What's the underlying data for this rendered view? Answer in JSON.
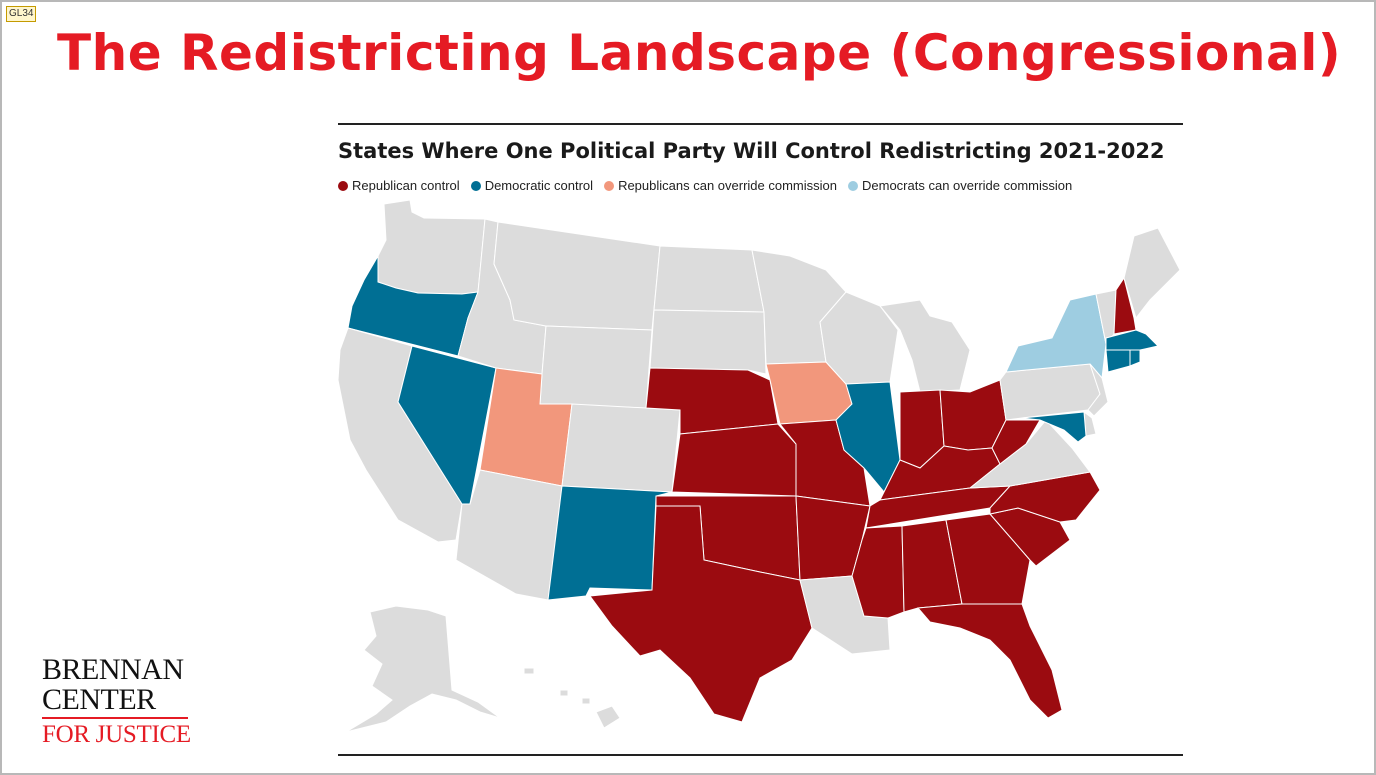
{
  "corner_tag": "GL34",
  "slide_title": "The Redistricting Landscape (Congressional)",
  "map_title": "States Where One Political Party Will Control Redistricting 2021-2022",
  "legend": [
    {
      "label": "Republican control",
      "color": "#9b0b10"
    },
    {
      "label": "Democratic control",
      "color": "#006f94"
    },
    {
      "label": "Republicans can override commission",
      "color": "#f2977c"
    },
    {
      "label": "Democrats can override commission",
      "color": "#9ecde1"
    }
  ],
  "neutral_color": "#dcdcdc",
  "logo": {
    "line1": "BRENNAN",
    "line2": "CENTER",
    "line3": "FOR JUSTICE"
  },
  "states": [
    {
      "name": "Washington",
      "status": "neutral"
    },
    {
      "name": "Oregon",
      "status": "democratic"
    },
    {
      "name": "California",
      "status": "neutral"
    },
    {
      "name": "Nevada",
      "status": "democratic"
    },
    {
      "name": "Idaho",
      "status": "neutral"
    },
    {
      "name": "Montana",
      "status": "neutral"
    },
    {
      "name": "Wyoming",
      "status": "neutral"
    },
    {
      "name": "Utah",
      "status": "republican_override"
    },
    {
      "name": "Arizona",
      "status": "neutral"
    },
    {
      "name": "Colorado",
      "status": "neutral"
    },
    {
      "name": "New Mexico",
      "status": "democratic"
    },
    {
      "name": "North Dakota",
      "status": "neutral"
    },
    {
      "name": "South Dakota",
      "status": "neutral"
    },
    {
      "name": "Nebraska",
      "status": "republican"
    },
    {
      "name": "Kansas",
      "status": "republican"
    },
    {
      "name": "Oklahoma",
      "status": "republican"
    },
    {
      "name": "Texas",
      "status": "republican"
    },
    {
      "name": "Minnesota",
      "status": "neutral"
    },
    {
      "name": "Iowa",
      "status": "republican_override"
    },
    {
      "name": "Missouri",
      "status": "republican"
    },
    {
      "name": "Arkansas",
      "status": "republican"
    },
    {
      "name": "Louisiana",
      "status": "neutral"
    },
    {
      "name": "Wisconsin",
      "status": "neutral"
    },
    {
      "name": "Illinois",
      "status": "democratic"
    },
    {
      "name": "Michigan",
      "status": "neutral"
    },
    {
      "name": "Indiana",
      "status": "republican"
    },
    {
      "name": "Ohio",
      "status": "republican"
    },
    {
      "name": "Kentucky",
      "status": "republican"
    },
    {
      "name": "Tennessee",
      "status": "republican"
    },
    {
      "name": "Mississippi",
      "status": "republican"
    },
    {
      "name": "Alabama",
      "status": "republican"
    },
    {
      "name": "Georgia",
      "status": "republican"
    },
    {
      "name": "Florida",
      "status": "republican"
    },
    {
      "name": "South Carolina",
      "status": "republican"
    },
    {
      "name": "North Carolina",
      "status": "republican"
    },
    {
      "name": "Virginia",
      "status": "neutral"
    },
    {
      "name": "West Virginia",
      "status": "republican"
    },
    {
      "name": "Pennsylvania",
      "status": "neutral"
    },
    {
      "name": "New York",
      "status": "democratic_override"
    },
    {
      "name": "New Jersey",
      "status": "neutral"
    },
    {
      "name": "Delaware",
      "status": "neutral"
    },
    {
      "name": "Maryland",
      "status": "democratic"
    },
    {
      "name": "Vermont",
      "status": "neutral"
    },
    {
      "name": "New Hampshire",
      "status": "republican"
    },
    {
      "name": "Maine",
      "status": "neutral"
    },
    {
      "name": "Massachusetts",
      "status": "democratic"
    },
    {
      "name": "Connecticut",
      "status": "democratic"
    },
    {
      "name": "Rhode Island",
      "status": "democratic"
    },
    {
      "name": "Alaska",
      "status": "neutral"
    },
    {
      "name": "Hawaii",
      "status": "neutral"
    }
  ]
}
